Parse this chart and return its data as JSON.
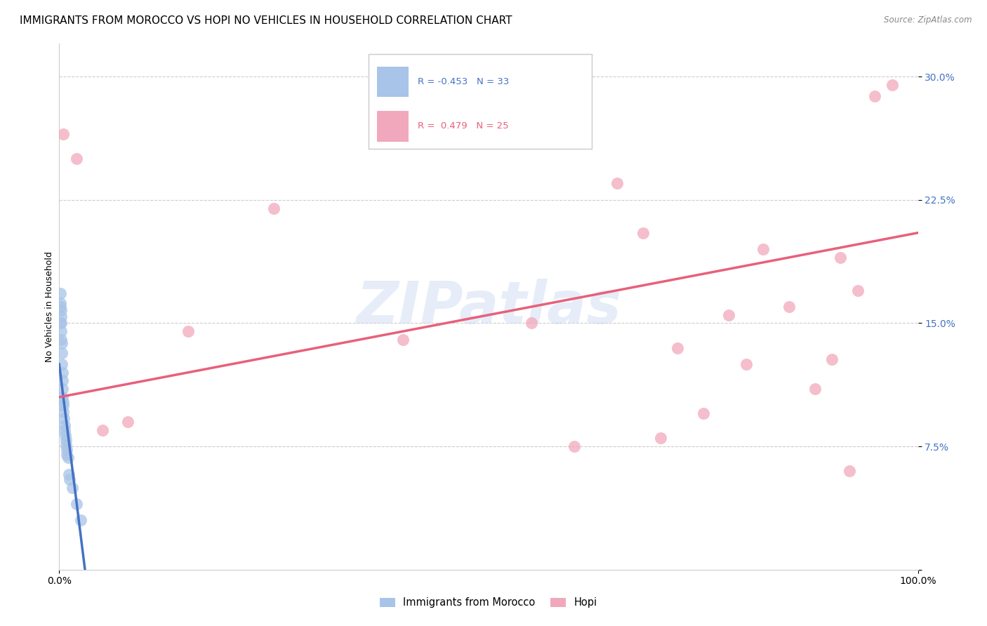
{
  "title": "IMMIGRANTS FROM MOROCCO VS HOPI NO VEHICLES IN HOUSEHOLD CORRELATION CHART",
  "source": "Source: ZipAtlas.com",
  "ylabel": "No Vehicles in Household",
  "legend_label1": "Immigrants from Morocco",
  "legend_label2": "Hopi",
  "R1": -0.453,
  "N1": 33,
  "R2": 0.479,
  "N2": 25,
  "watermark": "ZIPatlas",
  "blue_color": "#a8c4e8",
  "pink_color": "#f2a8bc",
  "blue_line_color": "#4472c4",
  "pink_line_color": "#e8607a",
  "blue_scatter_x": [
    0.1,
    0.15,
    0.18,
    0.2,
    0.22,
    0.25,
    0.28,
    0.3,
    0.32,
    0.35,
    0.38,
    0.4,
    0.42,
    0.45,
    0.48,
    0.5,
    0.55,
    0.6,
    0.65,
    0.7,
    0.75,
    0.8,
    0.85,
    0.9,
    1.0,
    1.1,
    1.2,
    1.5,
    2.0,
    2.5,
    0.12,
    0.16,
    0.22
  ],
  "blue_scatter_y": [
    16.8,
    16.2,
    15.8,
    15.4,
    15.0,
    14.5,
    13.8,
    13.2,
    12.5,
    12.0,
    11.5,
    11.0,
    10.5,
    10.2,
    10.0,
    9.6,
    9.2,
    8.8,
    8.5,
    8.2,
    7.9,
    7.6,
    7.3,
    7.0,
    6.8,
    5.8,
    5.5,
    5.0,
    4.0,
    3.0,
    16.0,
    15.0,
    14.0
  ],
  "pink_scatter_x": [
    0.5,
    2.0,
    5.0,
    8.0,
    15.0,
    25.0,
    40.0,
    55.0,
    60.0,
    65.0,
    68.0,
    70.0,
    72.0,
    75.0,
    78.0,
    80.0,
    82.0,
    85.0,
    88.0,
    90.0,
    91.0,
    92.0,
    93.0,
    95.0,
    97.0
  ],
  "pink_scatter_y": [
    26.5,
    25.0,
    8.5,
    9.0,
    14.5,
    22.0,
    14.0,
    15.0,
    7.5,
    23.5,
    20.5,
    8.0,
    13.5,
    9.5,
    15.5,
    12.5,
    19.5,
    16.0,
    11.0,
    12.8,
    19.0,
    6.0,
    17.0,
    28.8,
    29.5
  ],
  "xlim": [
    0,
    100
  ],
  "ylim": [
    0,
    32
  ],
  "yticks": [
    0,
    7.5,
    15.0,
    22.5,
    30.0
  ],
  "ytick_labels": [
    "",
    "7.5%",
    "15.0%",
    "22.5%",
    "30.0%"
  ],
  "blue_line_x0": 0.0,
  "blue_line_y0": 12.5,
  "blue_line_x1": 3.0,
  "blue_line_y1": 0.0,
  "pink_line_x0": 0.0,
  "pink_line_y0": 10.5,
  "pink_line_x1": 100.0,
  "pink_line_y1": 20.5,
  "grid_color": "#cccccc",
  "background_color": "#ffffff",
  "title_fontsize": 11,
  "axis_label_fontsize": 9,
  "tick_fontsize": 10
}
